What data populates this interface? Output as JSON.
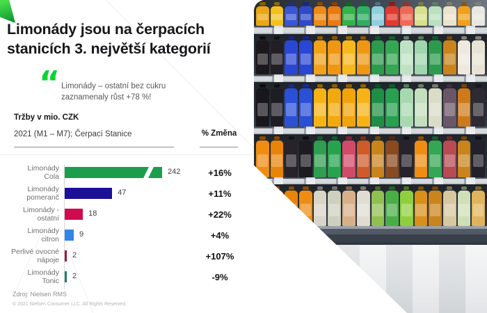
{
  "slide": {
    "title_line1": "Limonády jsou na čerpacích",
    "title_line2": "stanicích 3. největší kategorií",
    "quote_icon": "“",
    "quote_line1": "Limonády – ostatní bez cukru",
    "quote_line2": "zaznamenaly růst +78 %!",
    "metric_title": "Tržby v mio. CZK",
    "metric_subtitle": "2021 (M1 – M7); Čerpací Stanice",
    "pct_header": "% Změna",
    "source": "Zdroj: Nielsen RMS",
    "copyright": "© 2021 Nielsen Consumer LLC. All Rights Reserved."
  },
  "colors": {
    "accent_green": "#0ed333",
    "title_black": "#17161a",
    "label_gray": "#6f6f6f",
    "axis_gray": "#d9d9d9"
  },
  "chart_data": {
    "type": "bar",
    "orientation": "horizontal",
    "title": "Tržby v mio. CZK",
    "subtitle": "2021 (M1 – M7); Čerpací Stanice",
    "pct_column_header": "% Změna",
    "categories": [
      "Limonády Cola",
      "Limonády pomeranč",
      "Limonády - ostatní",
      "Limonády citron",
      "Perlivé ovocné nápoje",
      "Limonády Tonic"
    ],
    "values": [
      242,
      47,
      18,
      9,
      2,
      2
    ],
    "pct_change": [
      "+16%",
      "+11%",
      "+22%",
      "+4%",
      "+107%",
      "-9%"
    ],
    "axis_break_on_first_bar": true,
    "rows": [
      {
        "label": "Limonády\nCola",
        "value": 242,
        "pct": "+16%",
        "color": "#1a9e4b",
        "axis_break": true
      },
      {
        "label": "Limonády\npomeranč",
        "value": 47,
        "pct": "+11%",
        "color": "#1c1096",
        "axis_break": false
      },
      {
        "label": "Limonády -\nostatní",
        "value": 18,
        "pct": "+22%",
        "color": "#d00a4e",
        "axis_break": false
      },
      {
        "label": "Limonády\ncitron",
        "value": 9,
        "pct": "+4%",
        "color": "#2f86e8",
        "axis_break": false
      },
      {
        "label": "Perlivé ovocné\nnápoje",
        "value": 2,
        "pct": "+107%",
        "color": "#9b1b40",
        "axis_break": false
      },
      {
        "label": "Limonády\nTonic",
        "value": 2,
        "pct": "-9%",
        "color": "#1b7f68",
        "axis_break": false
      }
    ]
  },
  "photo": {
    "subject": "supermarket-shelf-with-soft-drink-bottles",
    "floor_h": 98,
    "rows": [
      {
        "h": 37,
        "strip": 12,
        "first": true,
        "base": false,
        "bottles": [
          "#e9a714",
          "#f2c11c",
          "#3a55d6",
          "#2f49c9",
          "#ef8a14",
          "#e97a10",
          "#35b24a",
          "#2fae62",
          "#8fd0de",
          "#e23a2e",
          "#ef6a55",
          "#d8e08a",
          "#b9e0c0",
          "#ece3cc",
          "#f2a01a",
          "#e9e7e0"
        ]
      },
      {
        "h": 58,
        "strip": 11,
        "first": false,
        "base": false,
        "bottles": [
          "#1b181d",
          "#221f24",
          "#2a46d4",
          "#2a46d4",
          "#f2a119",
          "#ef9711",
          "#f7b81c",
          "#ef9711",
          "#2c9b4e",
          "#35a653",
          "#bfe2c4",
          "#9fd6ad",
          "#2c9b4e",
          "#c9841c",
          "#eee9df",
          "#e8e3d5"
        ]
      },
      {
        "h": 64,
        "strip": 11,
        "first": false,
        "base": false,
        "bottles": [
          "#17171c",
          "#1d1d24",
          "#2a50d8",
          "#2a50d8",
          "#f6b313",
          "#f0a90e",
          "#f2a40b",
          "#f6b313",
          "#1f8f45",
          "#27a050",
          "#a8d8b0",
          "#c4dfc0",
          "#d9ddc8",
          "#6b5668",
          "#cf7a1a",
          "#2e2a32"
        ]
      },
      {
        "h": 62,
        "strip": 10,
        "first": false,
        "base": false,
        "bottles": [
          "#ef8d12",
          "#e98408",
          "#26232b",
          "#1d1a21",
          "#2f9e4f",
          "#27a24f",
          "#d14a6a",
          "#cf5a2a",
          "#c9841c",
          "#8a4a1f",
          "#26232b",
          "#ef8d12",
          "#35a653",
          "#b84a52",
          "#c9841c",
          "#22202a"
        ]
      },
      {
        "h": 60,
        "strip": 27,
        "first": false,
        "base": true,
        "bottles": [
          "#ef8d12",
          "#ef8d12",
          "#e98408",
          "#ef8d12",
          "#d8d6c8",
          "#cdd0bf",
          "#d8b088",
          "#e0ddd0",
          "#8fc050",
          "#4aae46",
          "#8fcf3f",
          "#d89018",
          "#c9841c",
          "#d8c8a0",
          "#cfe0b8",
          "#e0b45c"
        ]
      }
    ]
  }
}
